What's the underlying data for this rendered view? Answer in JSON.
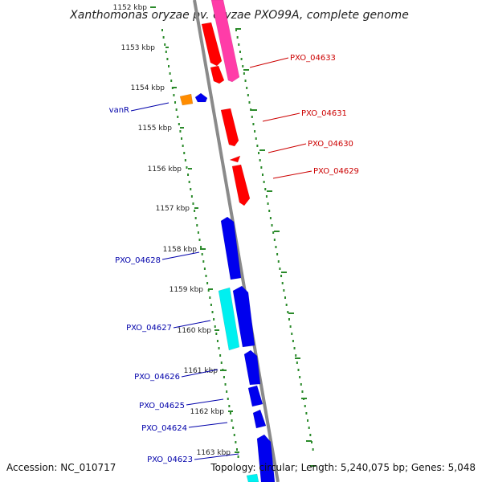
{
  "title": "Xanthomonas oryzae pv. oryzae PXO99A, complete genome",
  "footer": {
    "accession": "Accession: NC_010717",
    "topology": "Topology: circular; Length: 5,240,075 bp; Genes: 5,048"
  },
  "colors": {
    "backbone": "#8a8a8a",
    "tick_line": "#2a8a2a",
    "red_gene": "#ff0000",
    "pink_gene": "#ff3ca8",
    "blue_gene": "#0000ee",
    "cyan_gene": "#00f0f0",
    "orange_gene": "#ff8c00",
    "red_label": "#cc0000",
    "blue_label": "#0000aa"
  },
  "ticks": [
    {
      "label": "1152 kbp"
    },
    {
      "label": "1153 kbp"
    },
    {
      "label": "1154 kbp"
    },
    {
      "label": "1155 kbp"
    },
    {
      "label": "1156 kbp"
    },
    {
      "label": "1157 kbp"
    },
    {
      "label": "1158 kbp"
    },
    {
      "label": "1159 kbp"
    },
    {
      "label": "1160 kbp"
    },
    {
      "label": "1161 kbp"
    },
    {
      "label": "1162 kbp"
    },
    {
      "label": "1163 kbp"
    }
  ],
  "gene_labels": [
    {
      "name": "PXO_04633",
      "color": "red"
    },
    {
      "name": "PXO_04631",
      "color": "red"
    },
    {
      "name": "PXO_04630",
      "color": "red"
    },
    {
      "name": "PXO_04629",
      "color": "red"
    },
    {
      "name": "vanR",
      "color": "blue"
    },
    {
      "name": "PXO_04628",
      "color": "blue"
    },
    {
      "name": "PXO_04627",
      "color": "blue"
    },
    {
      "name": "PXO_04626",
      "color": "blue"
    },
    {
      "name": "PXO_04625",
      "color": "blue"
    },
    {
      "name": "PXO_04624",
      "color": "blue"
    },
    {
      "name": "PXO_04623",
      "color": "blue"
    }
  ]
}
